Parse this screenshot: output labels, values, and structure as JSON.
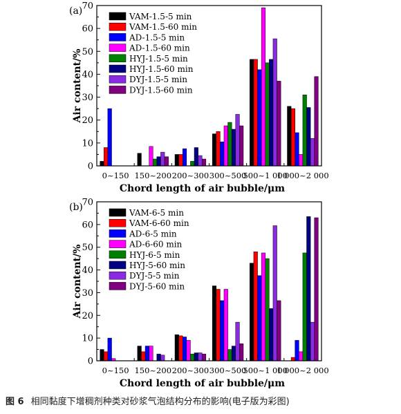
{
  "caption": {
    "label": "图 6",
    "text": "相同黏度下增稠剂种类对砂浆气泡结构分布的影响(电子版为彩图)"
  },
  "chart_data": [
    {
      "type": "bar",
      "panel_label": "(a)",
      "xlabel": "Chord length of air bubble/μm",
      "ylabel": "Air content/%",
      "ylim": [
        0,
        70
      ],
      "yticks": [
        0,
        10,
        20,
        30,
        40,
        50,
        60,
        70
      ],
      "categories": [
        "0~150",
        "150~200",
        "200~300",
        "300~500",
        "500~1 000",
        "1 000~2 000"
      ],
      "legend_position": "top-left",
      "series": [
        {
          "name": "VAM-1.5-5 min",
          "color": "#000000",
          "values": [
            2,
            5.5,
            5,
            14,
            46.5,
            26
          ]
        },
        {
          "name": "VAM-1.5-60 min",
          "color": "#ff0000",
          "values": [
            8,
            0,
            5,
            15,
            46.5,
            25
          ]
        },
        {
          "name": "AD-1.5-5 min",
          "color": "#0000ff",
          "values": [
            25,
            0,
            7.5,
            10.5,
            42,
            14.5
          ]
        },
        {
          "name": "AD-1.5-60 min",
          "color": "#ff00ff",
          "values": [
            0,
            8.5,
            0,
            17.5,
            69,
            5
          ]
        },
        {
          "name": "HYJ-1.5-5 min",
          "color": "#008000",
          "values": [
            0,
            3,
            2,
            19,
            45,
            31
          ]
        },
        {
          "name": "HYJ-1.5-60 min",
          "color": "#000080",
          "values": [
            0,
            4,
            8,
            16,
            46.5,
            25.5
          ]
        },
        {
          "name": "DYJ-1.5-5 min",
          "color": "#8a2be2",
          "values": [
            0,
            6,
            4.5,
            22.5,
            55.5,
            12
          ]
        },
        {
          "name": "DYJ-1.5-60 min",
          "color": "#800080",
          "values": [
            0,
            4,
            3,
            17.5,
            37,
            39
          ]
        }
      ]
    },
    {
      "type": "bar",
      "panel_label": "(b)",
      "xlabel": "Chord length of air bubble/μm",
      "ylabel": "Air content/%",
      "ylim": [
        0,
        70
      ],
      "yticks": [
        0,
        10,
        20,
        30,
        40,
        50,
        60,
        70
      ],
      "categories": [
        "0~150",
        "150~200",
        "200~300",
        "300~500",
        "500~1 000",
        "1 000~2 000"
      ],
      "legend_position": "top-left",
      "series": [
        {
          "name": "VAM-6-5 min",
          "color": "#000000",
          "values": [
            5,
            6.5,
            11.5,
            33,
            43,
            0
          ]
        },
        {
          "name": "VAM-6-60 min",
          "color": "#ff0000",
          "values": [
            4,
            4,
            11,
            31.5,
            48,
            1.5
          ]
        },
        {
          "name": "AD-6-5 min",
          "color": "#0000ff",
          "values": [
            10,
            6.5,
            10.5,
            26.5,
            37.5,
            9
          ]
        },
        {
          "name": "AD-6-60 min",
          "color": "#ff00ff",
          "values": [
            1,
            6.5,
            9,
            31.5,
            47.5,
            4
          ]
        },
        {
          "name": "HYJ-6-5 min",
          "color": "#008000",
          "values": [
            0,
            0,
            3,
            5,
            45,
            47.5
          ]
        },
        {
          "name": "HYJ-5-60 min",
          "color": "#000080",
          "values": [
            0,
            3,
            3.5,
            6.5,
            23,
            63.5
          ]
        },
        {
          "name": "DYJ-5-5 min",
          "color": "#8a2be2",
          "values": [
            0,
            2.5,
            3.5,
            17,
            59.5,
            17
          ]
        },
        {
          "name": "DYJ-5-60 min",
          "color": "#800080",
          "values": [
            0,
            0,
            3,
            7.5,
            26.5,
            63
          ]
        }
      ]
    }
  ]
}
